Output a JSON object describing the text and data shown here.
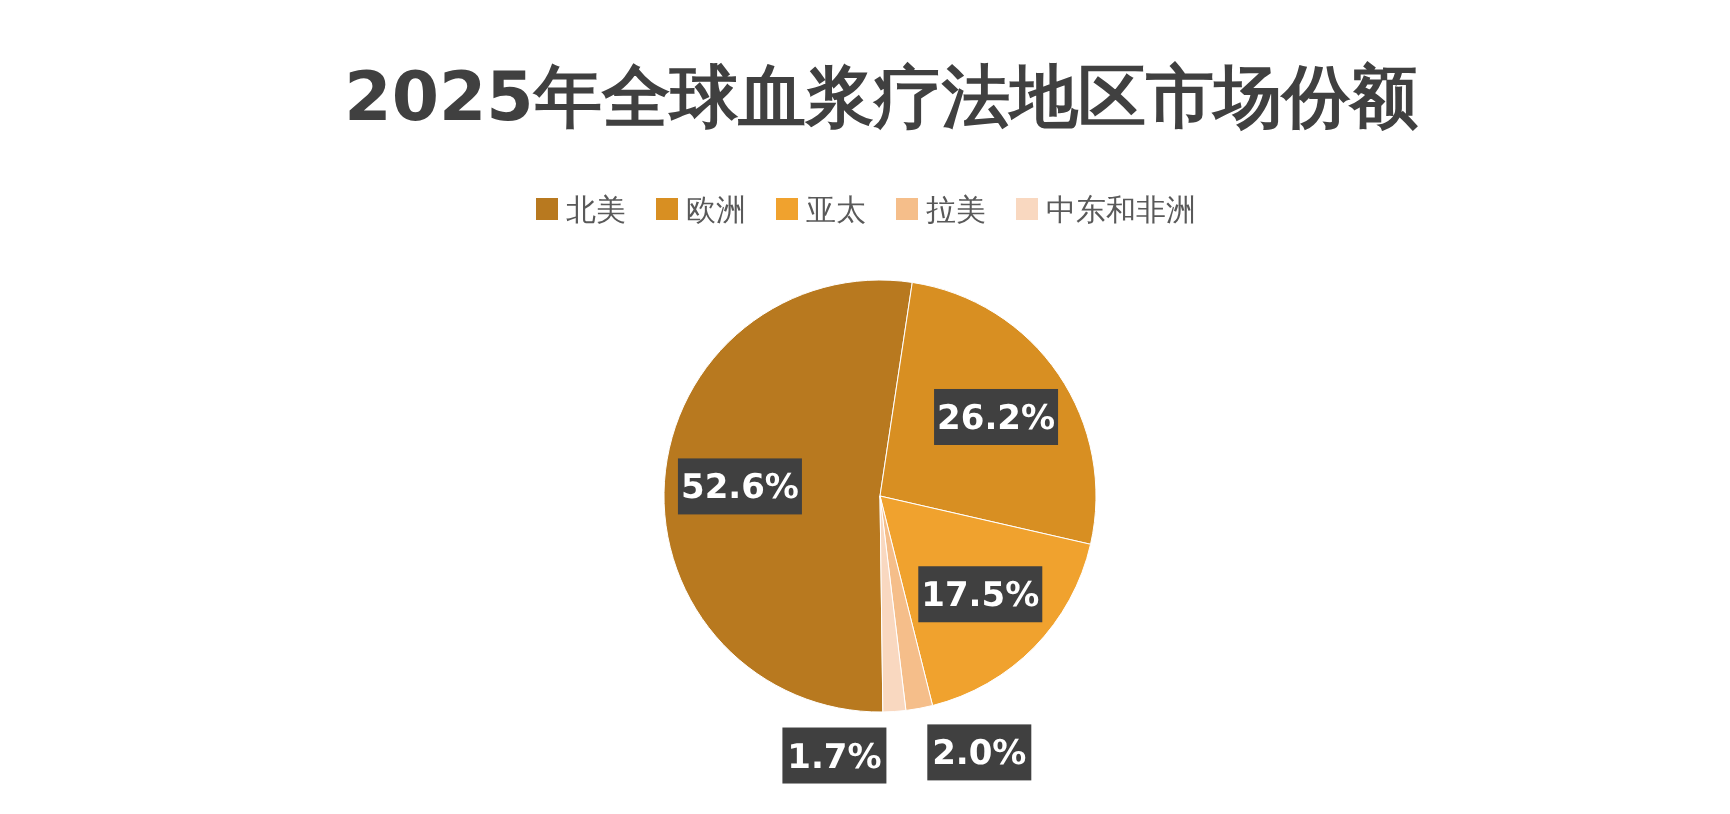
{
  "chart_data": {
    "type": "pie",
    "title": "2025年全球血浆疗法地区市场份额",
    "categories": [
      "北美",
      "欧洲",
      "亚太",
      "拉美",
      "中东和非洲"
    ],
    "values": [
      52.6,
      26.2,
      17.5,
      2.0,
      1.7
    ],
    "colors": [
      "#b8791f",
      "#d88f22",
      "#f0a22e",
      "#f5be8a",
      "#f9d8c0"
    ],
    "value_labels": [
      "52.6%",
      "26.2%",
      "17.5%",
      "2.0%",
      "1.7%"
    ],
    "legend": "top"
  }
}
